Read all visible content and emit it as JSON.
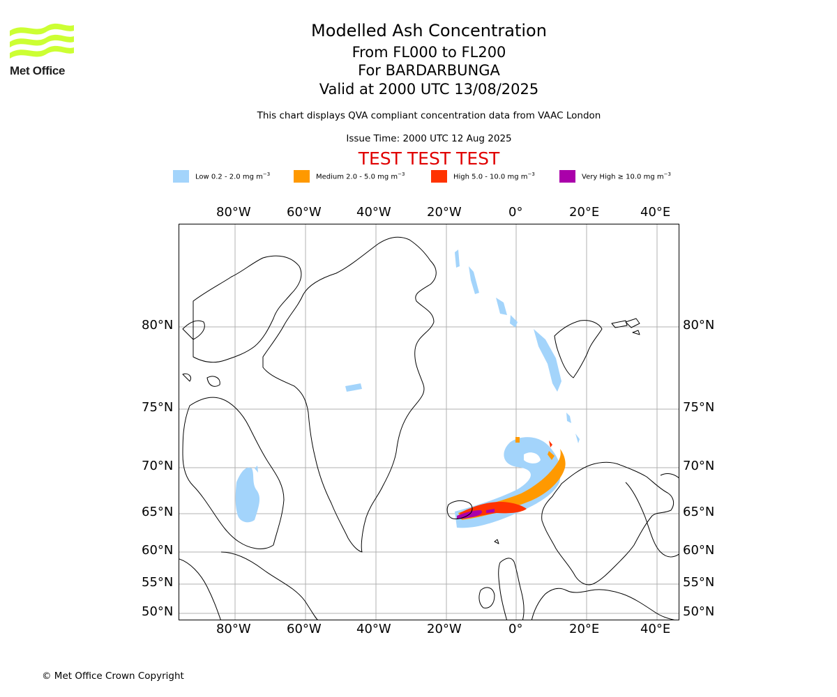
{
  "header": {
    "logo_text": "Met Office",
    "title": "Modelled Ash Concentration",
    "subtitle_levels": "From FL000 to FL200",
    "subtitle_volcano": "For BARDARBUNGA",
    "subtitle_valid": "Valid at 2000 UTC 13/08/2025",
    "note": "This chart displays QVA compliant concentration data from VAAC London",
    "issue_time": "Issue Time: 2000 UTC 12 Aug 2025",
    "test_banner": "TEST TEST TEST"
  },
  "legend": [
    {
      "label": "Low 0.2 - 2.0 mg m",
      "unit_exp": "−3",
      "color": "#a3d4fb"
    },
    {
      "label": "Medium 2.0 - 5.0 mg m",
      "unit_exp": "−3",
      "color": "#ff9900"
    },
    {
      "label": "High 5.0 - 10.0 mg m",
      "unit_exp": "−3",
      "color": "#ff3300"
    },
    {
      "label": "Very High  ≥  10.0 mg m",
      "unit_exp": "−3",
      "color": "#aa00aa"
    }
  ],
  "axes": {
    "longitude_labels": [
      "80°W",
      "60°W",
      "40°W",
      "20°W",
      "0°",
      "20°E",
      "40°E"
    ],
    "latitude_labels": [
      "80°N",
      "75°N",
      "70°N",
      "65°N",
      "60°N",
      "55°N",
      "50°N"
    ]
  },
  "colors": {
    "logo_green": "#ccff33",
    "coastline": "#000000",
    "gridline": "#b0b0b0",
    "test_banner": "#e00000"
  },
  "footer": {
    "copyright": "© Met Office Crown Copyright"
  }
}
